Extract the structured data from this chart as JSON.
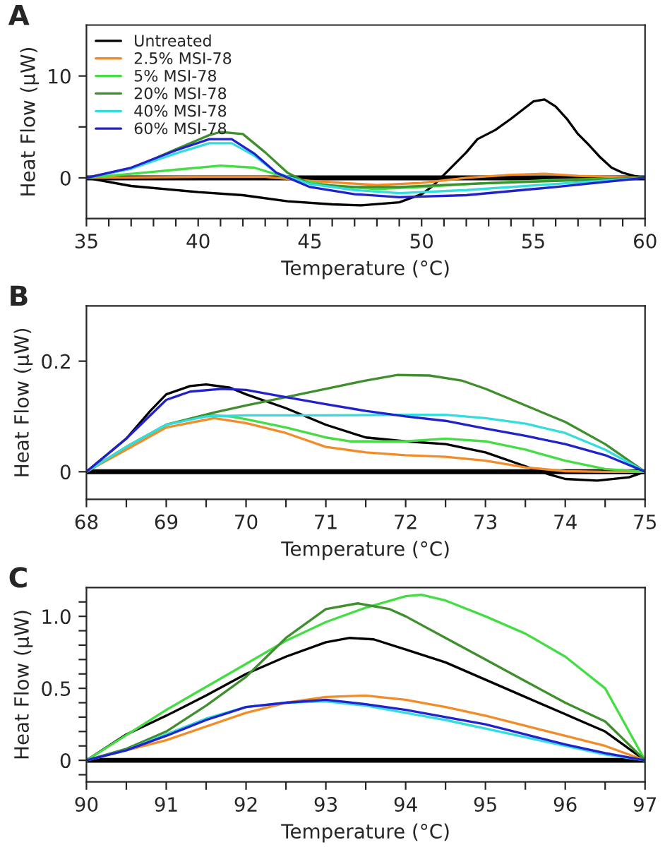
{
  "chart_data": [
    {
      "type": "line",
      "title": "A",
      "xlabel": "Temperature (°C)",
      "ylabel": "Heat Flow (µW)",
      "legend": "top left",
      "grid": false,
      "xlim": [
        35,
        60
      ],
      "ylim": [
        -4,
        15
      ],
      "xticks": [
        35,
        {
          "value": 36,
          "label": null
        },
        {
          "value": 37,
          "label": null
        },
        {
          "value": 38,
          "label": null
        },
        {
          "value": 39,
          "label": null
        },
        40,
        {
          "value": 41,
          "label": null
        },
        {
          "value": 42,
          "label": null
        },
        {
          "value": 43,
          "label": null
        },
        {
          "value": 44,
          "label": null
        },
        45,
        {
          "value": 46,
          "label": null
        },
        {
          "value": 47,
          "label": null
        },
        {
          "value": 48,
          "label": null
        },
        {
          "value": 49,
          "label": null
        },
        50,
        {
          "value": 51,
          "label": null
        },
        {
          "value": 52,
          "label": null
        },
        {
          "value": 53,
          "label": null
        },
        {
          "value": 54,
          "label": null
        },
        55,
        {
          "value": 56,
          "label": null
        },
        {
          "value": 57,
          "label": null
        },
        {
          "value": 58,
          "label": null
        },
        {
          "value": 59,
          "label": null
        },
        60
      ],
      "yticks": [
        0,
        {
          "value": 5,
          "label": null
        },
        10
      ],
      "ref_lines": [
        {
          "axis": "y",
          "value": 0,
          "color": "#000000"
        }
      ],
      "series": [
        {
          "name": "Untreated",
          "color": "#000000",
          "x": [
            35,
            37,
            40,
            42,
            44,
            46,
            47.3,
            49,
            50,
            50.5,
            51,
            52,
            52.5,
            53.3,
            54,
            55,
            55.5,
            56,
            56.5,
            57,
            57.5,
            58,
            58.5,
            59,
            59.5,
            60
          ],
          "values": [
            0,
            -0.8,
            -1.4,
            -1.7,
            -2.3,
            -2.6,
            -2.7,
            -2.4,
            -1.6,
            -0.8,
            0.3,
            2.5,
            3.8,
            4.7,
            5.8,
            7.5,
            7.7,
            7,
            5.8,
            4.3,
            3.2,
            2.0,
            1.0,
            0.5,
            0.2,
            0
          ]
        },
        {
          "name": "2.5% MSI-78",
          "color": "#f28c28",
          "x": [
            35,
            40,
            43,
            45,
            48,
            50,
            52,
            54,
            55.5,
            57,
            60
          ],
          "values": [
            0,
            0.1,
            0.1,
            -0.3,
            -0.7,
            -0.5,
            0,
            0.3,
            0.4,
            0.2,
            0
          ]
        },
        {
          "name": "5% MSI-78",
          "color": "#44dd44",
          "x": [
            35,
            38,
            41,
            42.5,
            44,
            46,
            48,
            50,
            53,
            56,
            60
          ],
          "values": [
            0,
            0.6,
            1.2,
            1.0,
            0,
            -0.8,
            -1.1,
            -0.9,
            -0.5,
            -0.2,
            0
          ]
        },
        {
          "name": "20% MSI-78",
          "color": "#3f8f2f",
          "x": [
            35,
            37,
            39,
            40.5,
            41,
            42,
            43,
            44,
            45,
            47,
            49,
            52,
            56,
            60
          ],
          "values": [
            0,
            0.9,
            2.8,
            4.2,
            4.5,
            4.3,
            2.5,
            0.5,
            -0.6,
            -0.9,
            -0.9,
            -0.6,
            -0.3,
            0
          ]
        },
        {
          "name": "40% MSI-78",
          "color": "#33dddd",
          "x": [
            35,
            37,
            39,
            40.5,
            41.5,
            42.5,
            43.5,
            45,
            47,
            49,
            52,
            56,
            60
          ],
          "values": [
            0,
            0.9,
            2.4,
            3.4,
            3.4,
            2.2,
            0.5,
            -0.6,
            -1.2,
            -1.5,
            -1.2,
            -0.6,
            0
          ]
        },
        {
          "name": "60% MSI-78",
          "color": "#2222cc",
          "x": [
            35,
            37,
            39,
            40.5,
            41.5,
            42.5,
            43.5,
            45,
            47,
            49,
            52,
            56,
            60
          ],
          "values": [
            0,
            1.0,
            2.7,
            3.8,
            3.8,
            2.4,
            0.5,
            -0.9,
            -1.6,
            -1.9,
            -1.7,
            -0.9,
            0
          ]
        }
      ]
    },
    {
      "type": "line",
      "title": "B",
      "xlabel": "Temperature (°C)",
      "ylabel": "Heat Flow (µW)",
      "grid": false,
      "xlim": [
        68,
        75
      ],
      "ylim": [
        -0.05,
        0.3
      ],
      "xticks": [
        68,
        {
          "value": 68.5,
          "label": null
        },
        69,
        {
          "value": 69.5,
          "label": null
        },
        70,
        {
          "value": 70.5,
          "label": null
        },
        71,
        {
          "value": 71.5,
          "label": null
        },
        72,
        {
          "value": 72.5,
          "label": null
        },
        73,
        {
          "value": 73.5,
          "label": null
        },
        74,
        {
          "value": 74.5,
          "label": null
        },
        75
      ],
      "yticks": [
        0,
        0.2
      ],
      "ref_lines": [
        {
          "axis": "y",
          "value": 0,
          "color": "#000000"
        }
      ],
      "series": [
        {
          "color": "#000000",
          "x": [
            68,
            68.5,
            68.8,
            69.0,
            69.3,
            69.5,
            69.8,
            70,
            70.5,
            71,
            71.5,
            72,
            72.5,
            73,
            73.5,
            73.8,
            74,
            74.4,
            74.8,
            75
          ],
          "values": [
            0,
            0.06,
            0.11,
            0.14,
            0.155,
            0.158,
            0.152,
            0.14,
            0.115,
            0.085,
            0.062,
            0.055,
            0.05,
            0.035,
            0.01,
            -0.005,
            -0.013,
            -0.016,
            -0.01,
            0
          ]
        },
        {
          "color": "#f28c28",
          "x": [
            68,
            68.5,
            69,
            69.6,
            70,
            70.5,
            71,
            71.5,
            72,
            72.5,
            73,
            73.5,
            74,
            74.5,
            75
          ],
          "values": [
            0,
            0.04,
            0.08,
            0.097,
            0.088,
            0.07,
            0.045,
            0.035,
            0.03,
            0.027,
            0.02,
            0.008,
            0.001,
            0,
            0
          ]
        },
        {
          "color": "#44dd44",
          "x": [
            68,
            68.5,
            69,
            69.5,
            69.8,
            70,
            70.5,
            71,
            71.3,
            72,
            72.5,
            73,
            73.5,
            74,
            74.5,
            75
          ],
          "values": [
            0,
            0.045,
            0.085,
            0.103,
            0.1,
            0.095,
            0.08,
            0.062,
            0.055,
            0.055,
            0.06,
            0.055,
            0.04,
            0.02,
            0.005,
            0
          ]
        },
        {
          "color": "#3f8f2f",
          "x": [
            68,
            68.5,
            69,
            69.6,
            70,
            70.5,
            71,
            71.5,
            71.9,
            72.3,
            72.7,
            73,
            73.5,
            74,
            74.5,
            75
          ],
          "values": [
            0,
            0.045,
            0.085,
            0.107,
            0.12,
            0.135,
            0.15,
            0.165,
            0.175,
            0.174,
            0.165,
            0.15,
            0.12,
            0.09,
            0.05,
            0
          ]
        },
        {
          "color": "#33dddd",
          "x": [
            68,
            68.5,
            69,
            69.5,
            70,
            71,
            72,
            72.5,
            73,
            73.5,
            74,
            74.5,
            75
          ],
          "values": [
            0,
            0.045,
            0.085,
            0.1,
            0.102,
            0.102,
            0.103,
            0.103,
            0.097,
            0.087,
            0.07,
            0.04,
            0
          ]
        },
        {
          "color": "#2222cc",
          "x": [
            68,
            68.5,
            69,
            69.3,
            69.7,
            70,
            70.5,
            71,
            71.5,
            72,
            72.5,
            73,
            73.5,
            74,
            74.5,
            75
          ],
          "values": [
            0,
            0.06,
            0.13,
            0.145,
            0.15,
            0.148,
            0.135,
            0.122,
            0.11,
            0.1,
            0.092,
            0.078,
            0.065,
            0.05,
            0.03,
            0
          ]
        }
      ]
    },
    {
      "type": "line",
      "title": "C",
      "xlabel": "Temperature (°C)",
      "ylabel": "Heat Flow (µW)",
      "grid": false,
      "xlim": [
        90,
        97
      ],
      "ylim": [
        -0.15,
        1.2
      ],
      "xticks": [
        90,
        {
          "value": 90.5,
          "label": null
        },
        91,
        {
          "value": 91.5,
          "label": null
        },
        92,
        {
          "value": 92.5,
          "label": null
        },
        93,
        {
          "value": 93.5,
          "label": null
        },
        94,
        {
          "value": 94.5,
          "label": null
        },
        95,
        {
          "value": 95.5,
          "label": null
        },
        96,
        {
          "value": 96.5,
          "label": null
        },
        97
      ],
      "yticks": [
        {
          "value": -0.1,
          "label": null
        },
        0,
        {
          "value": 0.1,
          "label": null
        },
        {
          "value": 0.2,
          "label": null
        },
        {
          "value": 0.3,
          "label": null
        },
        {
          "value": 0.4,
          "label": null
        },
        {
          "value": 0.5,
          "label": "0.5"
        },
        {
          "value": 0.6,
          "label": null
        },
        {
          "value": 0.7,
          "label": null
        },
        {
          "value": 0.8,
          "label": null
        },
        {
          "value": 0.9,
          "label": null
        },
        {
          "value": 1.0,
          "label": "1.0"
        },
        {
          "value": 1.1,
          "label": null
        }
      ],
      "ref_lines": [
        {
          "axis": "y",
          "value": 0,
          "color": "#000000"
        }
      ],
      "series": [
        {
          "color": "#000000",
          "x": [
            90,
            90.5,
            91,
            91.5,
            92,
            92.5,
            93,
            93.3,
            93.6,
            94,
            94.5,
            95,
            95.5,
            96,
            96.5,
            97
          ],
          "values": [
            0,
            0.18,
            0.31,
            0.45,
            0.6,
            0.72,
            0.82,
            0.85,
            0.84,
            0.77,
            0.68,
            0.56,
            0.44,
            0.32,
            0.2,
            0
          ]
        },
        {
          "color": "#f28c28",
          "x": [
            90,
            91,
            92,
            92.5,
            93,
            93.5,
            94,
            94.5,
            95,
            95.5,
            96,
            96.5,
            97
          ],
          "values": [
            0,
            0.14,
            0.33,
            0.4,
            0.44,
            0.45,
            0.42,
            0.37,
            0.31,
            0.24,
            0.17,
            0.1,
            0
          ]
        },
        {
          "color": "#44dd44",
          "x": [
            90,
            91,
            92,
            92.5,
            93,
            93.5,
            94,
            94.2,
            94.5,
            95,
            95.5,
            96,
            96.5,
            97
          ],
          "values": [
            0,
            0.35,
            0.67,
            0.83,
            0.96,
            1.06,
            1.14,
            1.15,
            1.11,
            1.0,
            0.88,
            0.72,
            0.5,
            0
          ]
        },
        {
          "color": "#3f8f2f",
          "x": [
            90,
            90.5,
            91,
            91.5,
            92,
            92.5,
            93,
            93.4,
            93.8,
            94,
            94.5,
            95,
            95.5,
            96,
            96.5,
            97
          ],
          "values": [
            0,
            0.08,
            0.2,
            0.38,
            0.58,
            0.85,
            1.05,
            1.09,
            1.05,
            1.0,
            0.85,
            0.7,
            0.55,
            0.4,
            0.27,
            0
          ]
        },
        {
          "color": "#33dddd",
          "x": [
            90,
            90.5,
            91,
            91.5,
            92,
            92.5,
            93,
            93.5,
            94,
            94.5,
            95,
            95.5,
            96,
            96.5,
            97
          ],
          "values": [
            0,
            0.07,
            0.18,
            0.29,
            0.37,
            0.4,
            0.41,
            0.38,
            0.33,
            0.28,
            0.22,
            0.16,
            0.1,
            0.04,
            0
          ]
        },
        {
          "color": "#2222cc",
          "x": [
            90,
            90.5,
            91,
            91.5,
            92,
            92.5,
            93,
            93.5,
            94,
            94.5,
            95,
            95.5,
            96,
            96.5,
            97
          ],
          "values": [
            0,
            0.07,
            0.17,
            0.28,
            0.37,
            0.4,
            0.42,
            0.39,
            0.35,
            0.3,
            0.25,
            0.18,
            0.11,
            0.05,
            0
          ]
        }
      ]
    }
  ]
}
